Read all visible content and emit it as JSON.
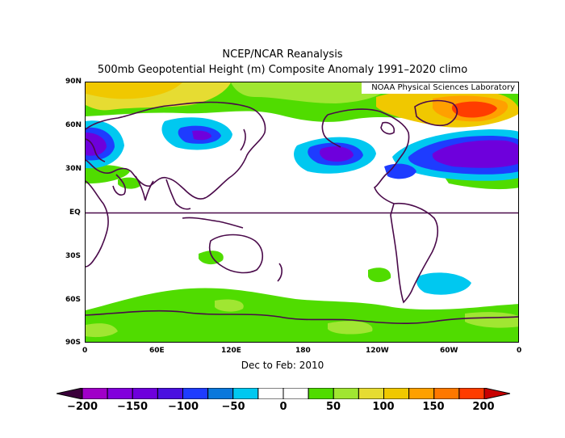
{
  "title": "NCEP/NCAR Reanalysis",
  "subtitle": "500mb Geopotential Height (m) Composite Anomaly 1991–2020 climo",
  "credit": "NOAA Physical Sciences Laboratory",
  "period": "Dec to Feb: 2010",
  "lat_labels": [
    "90N",
    "60N",
    "30N",
    "EQ",
    "30S",
    "60S",
    "90S"
  ],
  "lon_labels": [
    "0",
    "60E",
    "120E",
    "180",
    "120W",
    "60W",
    "0"
  ],
  "colorbar": {
    "labels": [
      "−200",
      "−150",
      "−100",
      "−50",
      "0",
      "50",
      "100",
      "150",
      "200"
    ],
    "colors": [
      "#a000c8",
      "#8200dc",
      "#6e00dc",
      "#4a10e0",
      "#1e3cff",
      "#0a78dc",
      "#00c8f0",
      "#ffffff",
      "#ffffff",
      "#50dc00",
      "#a0e632",
      "#e6dc32",
      "#f0c800",
      "#ffa000",
      "#ff7800",
      "#ff3c00"
    ],
    "end_low": "#3a003a",
    "end_high": "#c80000"
  },
  "colors": {
    "neg_dark": "#6e00dc",
    "neg_mid": "#1e3cff",
    "neg_light": "#00c8f0",
    "pos_light": "#50dc00",
    "pos_mid": "#a0e632",
    "pos_yellow": "#f0c800",
    "pos_orange": "#ffa000",
    "pos_red": "#ff3c00",
    "coast": "#4a0a4a"
  }
}
